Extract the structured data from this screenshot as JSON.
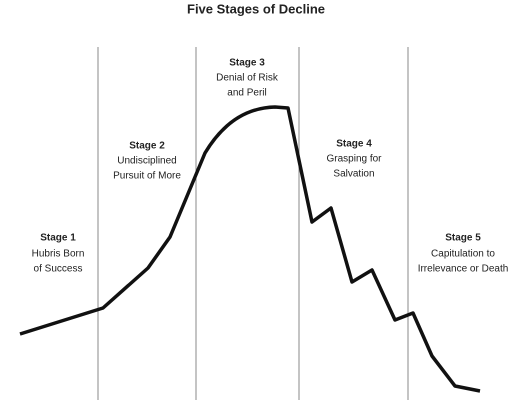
{
  "title": "Five Stages of Decline",
  "stages": [
    {
      "label": "Stage 1",
      "description": [
        "Hubris Born",
        "of Success"
      ]
    },
    {
      "label": "Stage 2",
      "description": [
        "Undisciplined",
        "Pursuit of More"
      ]
    },
    {
      "label": "Stage 3",
      "description": [
        "Denial of Risk",
        "and Peril"
      ]
    },
    {
      "label": "Stage 4",
      "description": [
        "Grasping for",
        "Salvation"
      ]
    },
    {
      "label": "Stage 5",
      "description": [
        "Capitulation to",
        "Irrelevance or Death"
      ]
    }
  ]
}
